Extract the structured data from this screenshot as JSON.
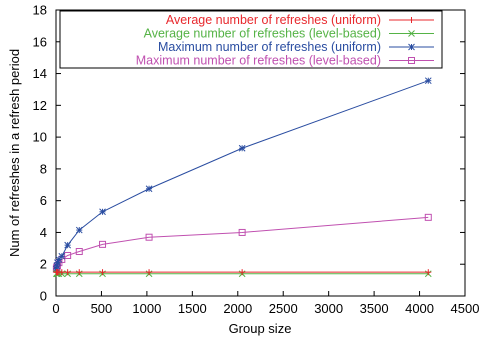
{
  "chart_data": {
    "type": "line",
    "xlabel": "Group size",
    "ylabel": "Num of refreshes in a refresh period",
    "xlim": [
      0,
      4500
    ],
    "ylim": [
      0,
      18
    ],
    "xticks": [
      "0",
      "500",
      "1000",
      "1500",
      "2000",
      "2500",
      "3000",
      "3500",
      "4000",
      "4500"
    ],
    "yticks": [
      "0",
      "2",
      "4",
      "6",
      "8",
      "10",
      "12",
      "14",
      "16",
      "18"
    ],
    "legend_position": "top-right",
    "grid": false,
    "series": [
      {
        "name": "Average number of refreshes (uniform)",
        "color": "#e8282d",
        "marker": "plus",
        "x": [
          4,
          8,
          16,
          32,
          64,
          128,
          256,
          512,
          1024,
          2048,
          4096
        ],
        "y": [
          1.5,
          1.5,
          1.5,
          1.5,
          1.5,
          1.5,
          1.5,
          1.5,
          1.5,
          1.5,
          1.5
        ]
      },
      {
        "name": "Average number of refreshes (level-based)",
        "color": "#55b346",
        "marker": "cross",
        "x": [
          4,
          8,
          16,
          32,
          64,
          128,
          256,
          512,
          1024,
          2048,
          4096
        ],
        "y": [
          1.4,
          1.4,
          1.4,
          1.4,
          1.4,
          1.4,
          1.4,
          1.4,
          1.4,
          1.4,
          1.4
        ]
      },
      {
        "name": "Maximum number of refreshes (uniform)",
        "color": "#2a4da1",
        "marker": "star",
        "x": [
          4,
          8,
          16,
          32,
          64,
          128,
          256,
          512,
          1024,
          2048,
          4096
        ],
        "y": [
          1.7,
          1.9,
          2.1,
          2.3,
          2.5,
          3.2,
          4.15,
          5.3,
          6.75,
          9.3,
          13.55
        ]
      },
      {
        "name": "Maximum number of refreshes (level-based)",
        "color": "#c050b0",
        "marker": "square",
        "x": [
          4,
          8,
          16,
          32,
          64,
          128,
          256,
          512,
          1024,
          2048,
          4096
        ],
        "y": [
          1.7,
          1.8,
          1.9,
          2.1,
          2.3,
          2.55,
          2.8,
          3.25,
          3.7,
          4.0,
          4.95
        ]
      }
    ]
  }
}
